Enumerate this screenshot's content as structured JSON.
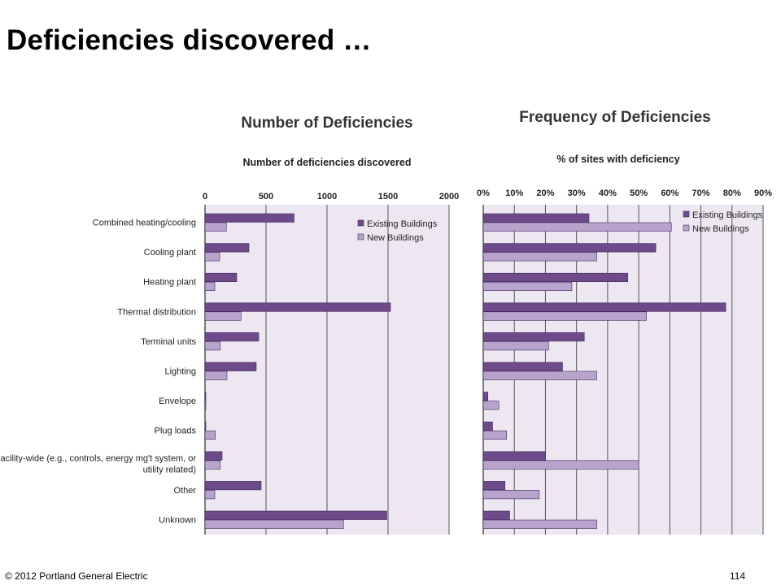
{
  "slide": {
    "title": "Deficiencies discovered …",
    "copyright": "© 2012 Portland General Electric",
    "page_number": "114"
  },
  "categories": [
    "Combined heating/cooling",
    "Cooling plant",
    "Heating plant",
    "Thermal distribution",
    "Terminal units",
    "Lighting",
    "Envelope",
    "Plug loads",
    [
      "Facility-wide (e.g., controls, energy mg't system, or",
      "utility related)"
    ],
    "Other",
    "Unknown"
  ],
  "colors": {
    "existing": "#6e4a8a",
    "new": "#b7a3cc",
    "plot_bg": "#ede7f2",
    "gridline": "#555555",
    "bar_stroke": "#3d2a55"
  },
  "chart_data": [
    {
      "type": "bar",
      "orientation": "horizontal",
      "title": "Number of Deficiencies",
      "xlabel": "Number of deficiencies discovered",
      "xlim": [
        0,
        2000
      ],
      "xticks": [
        "0",
        "500",
        "1000",
        "1500",
        "2000"
      ],
      "grid": true,
      "legend": "top-right",
      "series": [
        {
          "name": "Existing Buildings",
          "values": [
            730,
            360,
            260,
            1520,
            440,
            420,
            5,
            5,
            140,
            460,
            1490
          ]
        },
        {
          "name": "New Buildings",
          "values": [
            175,
            120,
            80,
            295,
            125,
            180,
            5,
            85,
            125,
            80,
            1135
          ]
        }
      ]
    },
    {
      "type": "bar",
      "orientation": "horizontal",
      "title": "Frequency of Deficiencies",
      "xlabel": "% of sites with deficiency",
      "xlim": [
        0,
        90
      ],
      "xticks": [
        "0%",
        "10%",
        "20%",
        "30%",
        "40%",
        "50%",
        "60%",
        "70%",
        "80%",
        "90%"
      ],
      "grid": true,
      "legend": "top-right",
      "series": [
        {
          "name": "Existing Buildings",
          "values": [
            34,
            55.5,
            46.5,
            78,
            32.5,
            25.5,
            1.5,
            3,
            20,
            7,
            8.5
          ]
        },
        {
          "name": "New Buildings",
          "values": [
            60.5,
            36.5,
            28.5,
            52.5,
            21,
            36.5,
            5,
            7.5,
            50,
            18,
            36.5
          ]
        }
      ]
    }
  ]
}
